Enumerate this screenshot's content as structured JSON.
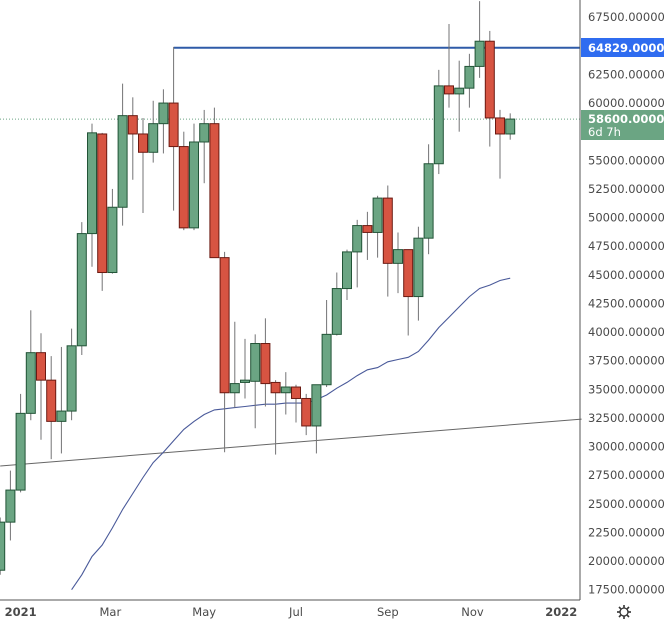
{
  "chart_data": {
    "type": "candlestick",
    "title": "",
    "interval": "weekly",
    "ylim": [
      16600,
      69000
    ],
    "y_ticks": [
      67500,
      62500,
      60000,
      55000,
      52500,
      50000,
      47500,
      45000,
      42500,
      40000,
      37500,
      35000,
      32500,
      30000,
      27500,
      25000,
      22500,
      20000,
      17500
    ],
    "y_tick_labels": [
      "67500.000000",
      "62500.000000",
      "60000.000000",
      "55000.000000",
      "52500.000000",
      "50000.000000",
      "47500.000000",
      "45000.000000",
      "42500.000000",
      "40000.000000",
      "37500.000000",
      "35000.000000",
      "32500.000000",
      "30000.000000",
      "27500.000000",
      "25000.000000",
      "22500.000000",
      "20000.000000",
      "17500.000000"
    ],
    "x_ticks": [
      {
        "label": "2021",
        "week": 2
      },
      {
        "label": "Mar",
        "week": 10.8
      },
      {
        "label": "May",
        "week": 20
      },
      {
        "label": "Jul",
        "week": 29
      },
      {
        "label": "Sep",
        "week": 38
      },
      {
        "label": "Nov",
        "week": 46.3
      },
      {
        "label": "2022",
        "week": 55
      }
    ],
    "candles": [
      {
        "o": 19200,
        "h": 23800,
        "l": 18800,
        "c": 23400
      },
      {
        "o": 23400,
        "h": 27900,
        "l": 21800,
        "c": 26200
      },
      {
        "o": 26200,
        "h": 34600,
        "l": 26000,
        "c": 32900
      },
      {
        "o": 32900,
        "h": 41900,
        "l": 32300,
        "c": 38200
      },
      {
        "o": 38200,
        "h": 39900,
        "l": 30600,
        "c": 35800
      },
      {
        "o": 35800,
        "h": 37900,
        "l": 28900,
        "c": 32200
      },
      {
        "o": 32200,
        "h": 38700,
        "l": 29400,
        "c": 33100
      },
      {
        "o": 33100,
        "h": 40300,
        "l": 32300,
        "c": 38800
      },
      {
        "o": 38800,
        "h": 49600,
        "l": 38000,
        "c": 48600
      },
      {
        "o": 48600,
        "h": 58200,
        "l": 45700,
        "c": 57400
      },
      {
        "o": 57300,
        "h": 57400,
        "l": 43600,
        "c": 45200
      },
      {
        "o": 45200,
        "h": 52500,
        "l": 45100,
        "c": 50900
      },
      {
        "o": 50900,
        "h": 61700,
        "l": 49300,
        "c": 58900
      },
      {
        "o": 58900,
        "h": 60500,
        "l": 53300,
        "c": 57300
      },
      {
        "o": 57300,
        "h": 58700,
        "l": 50400,
        "c": 55700
      },
      {
        "o": 55700,
        "h": 60200,
        "l": 54800,
        "c": 58200
      },
      {
        "o": 58200,
        "h": 61200,
        "l": 55600,
        "c": 60000
      },
      {
        "o": 60000,
        "h": 64900,
        "l": 50600,
        "c": 56200
      },
      {
        "o": 56200,
        "h": 57500,
        "l": 48900,
        "c": 49100
      },
      {
        "o": 49100,
        "h": 58200,
        "l": 48900,
        "c": 56600
      },
      {
        "o": 56600,
        "h": 59400,
        "l": 53000,
        "c": 58200
      },
      {
        "o": 58200,
        "h": 59600,
        "l": 46500,
        "c": 46500
      },
      {
        "o": 46500,
        "h": 47000,
        "l": 29500,
        "c": 34700
      },
      {
        "o": 34700,
        "h": 40900,
        "l": 33400,
        "c": 35500
      },
      {
        "o": 35600,
        "h": 39400,
        "l": 34200,
        "c": 35800
      },
      {
        "o": 35700,
        "h": 39800,
        "l": 31600,
        "c": 39000
      },
      {
        "o": 39000,
        "h": 41200,
        "l": 33500,
        "c": 35500
      },
      {
        "o": 35600,
        "h": 35800,
        "l": 29300,
        "c": 34700
      },
      {
        "o": 34700,
        "h": 36500,
        "l": 32800,
        "c": 35200
      },
      {
        "o": 35200,
        "h": 35400,
        "l": 32100,
        "c": 34200
      },
      {
        "o": 34200,
        "h": 34600,
        "l": 31000,
        "c": 31800
      },
      {
        "o": 31800,
        "h": 35400,
        "l": 29400,
        "c": 35400
      },
      {
        "o": 35400,
        "h": 42800,
        "l": 35200,
        "c": 39800
      },
      {
        "o": 39800,
        "h": 45200,
        "l": 39700,
        "c": 43800
      },
      {
        "o": 43800,
        "h": 47200,
        "l": 42800,
        "c": 47000
      },
      {
        "o": 47000,
        "h": 49800,
        "l": 43900,
        "c": 49300
      },
      {
        "o": 49300,
        "h": 50500,
        "l": 46300,
        "c": 48700
      },
      {
        "o": 48700,
        "h": 51900,
        "l": 46500,
        "c": 51700
      },
      {
        "o": 51700,
        "h": 52800,
        "l": 43100,
        "c": 46000
      },
      {
        "o": 46000,
        "h": 48700,
        "l": 43400,
        "c": 47200
      },
      {
        "o": 47200,
        "h": 47200,
        "l": 39700,
        "c": 43100
      },
      {
        "o": 43100,
        "h": 49200,
        "l": 41000,
        "c": 48200
      },
      {
        "o": 48200,
        "h": 56400,
        "l": 46800,
        "c": 54700
      },
      {
        "o": 54700,
        "h": 62900,
        "l": 53800,
        "c": 61500
      },
      {
        "o": 61500,
        "h": 66900,
        "l": 59600,
        "c": 60800
      },
      {
        "o": 60800,
        "h": 63700,
        "l": 57500,
        "c": 61300
      },
      {
        "o": 61300,
        "h": 64300,
        "l": 59600,
        "c": 63200
      },
      {
        "o": 63200,
        "h": 68900,
        "l": 62200,
        "c": 65400
      },
      {
        "o": 65400,
        "h": 66300,
        "l": 56200,
        "c": 58700
      },
      {
        "o": 58700,
        "h": 59400,
        "l": 53400,
        "c": 57300
      },
      {
        "o": 57300,
        "h": 59100,
        "l": 56800,
        "c": 58600
      }
    ],
    "moving_average": {
      "start_week": 7,
      "values": [
        17500,
        18800,
        20400,
        21400,
        22900,
        24500,
        25900,
        27300,
        28600,
        29500,
        30500,
        31500,
        32200,
        32800,
        33200,
        33300,
        33400,
        33500,
        33600,
        33700,
        33700,
        33800,
        33800,
        33800,
        34100,
        34500,
        35100,
        35600,
        36200,
        36700,
        36900,
        37400,
        37600,
        37800,
        38300,
        39300,
        40400,
        41300,
        42200,
        43100,
        43800,
        44100,
        44500,
        44700
      ]
    },
    "trendline": {
      "start": {
        "week": 0,
        "price": 28300
      },
      "end": {
        "week": 57,
        "price": 32400
      }
    },
    "horizontal_line": {
      "price": 64829,
      "from_week": 17,
      "label": "64829.000000"
    },
    "last_price": {
      "price": 58600,
      "label": "58600.000000",
      "countdown": "6d 7h"
    },
    "colors": {
      "up": "#6ba583",
      "up_border": "#225437",
      "down": "#d75442",
      "down_border": "#6b1a12",
      "wick": "#737375",
      "ma": "#4a5a9a",
      "hline": "#2f5ba8",
      "hline_label": "#2f6cf0",
      "trend": "#666666"
    }
  },
  "settings_icon": "gear-icon"
}
